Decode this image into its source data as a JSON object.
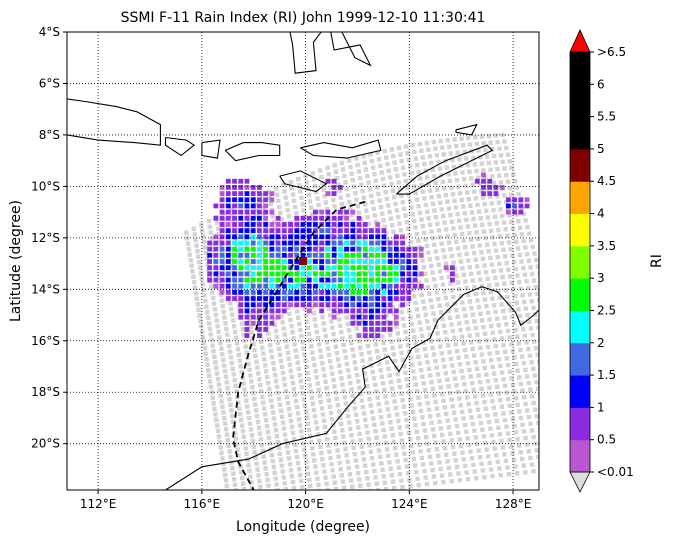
{
  "chart_data": {
    "type": "map",
    "title": "SSMI F-11 Rain Index (RI) John 1999-12-10 11:30:41",
    "xlabel": "Longitude (degree)",
    "ylabel": "Latitude (degree)",
    "xlim": [
      110.8,
      129.0
    ],
    "ylim": [
      -21.8,
      -4.0
    ],
    "xticks": [
      {
        "value": 112,
        "label": "112°E"
      },
      {
        "value": 116,
        "label": "116°E"
      },
      {
        "value": 120,
        "label": "120°E"
      },
      {
        "value": 124,
        "label": "124°E"
      },
      {
        "value": 128,
        "label": "128°E"
      }
    ],
    "yticks": [
      {
        "value": -4,
        "label": "4°S"
      },
      {
        "value": -6,
        "label": "6°S"
      },
      {
        "value": -8,
        "label": "8°S"
      },
      {
        "value": -10,
        "label": "10°S"
      },
      {
        "value": -12,
        "label": "12°S"
      },
      {
        "value": -14,
        "label": "14°S"
      },
      {
        "value": -16,
        "label": "16°S"
      },
      {
        "value": -18,
        "label": "18°S"
      },
      {
        "value": -20,
        "label": "20°S"
      }
    ],
    "grid": "dotted",
    "colorbar": {
      "label": "RI",
      "tick_labels": [
        "<0.01",
        "0.5",
        "1",
        "1.5",
        "2",
        "2.5",
        "3",
        "3.5",
        "4",
        "4.5",
        "5",
        "5.5",
        "6",
        ">6.5"
      ],
      "colors": [
        "#BA55D3",
        "#8A2BE2",
        "#0000FF",
        "#4169E1",
        "#00FFFF",
        "#00FF00",
        "#7FFF00",
        "#FFFF00",
        "#FFA500",
        "#800000",
        "#000000",
        "#000000",
        "#000000"
      ],
      "under_color": "#DDDDDD",
      "over_color": "#FF0000"
    },
    "swath_color": "#D3D3D3",
    "track_style": "dashed",
    "storm_center": {
      "lon": 119.9,
      "lat": -12.9,
      "color": "#8B0000"
    },
    "track": [
      [
        122.3,
        -10.6
      ],
      [
        121.2,
        -10.9
      ],
      [
        120.3,
        -11.8
      ],
      [
        119.6,
        -12.9
      ],
      [
        119.0,
        -13.9
      ],
      [
        118.2,
        -15.2
      ],
      [
        117.8,
        -16.5
      ],
      [
        117.4,
        -18.0
      ],
      [
        117.2,
        -19.8
      ],
      [
        117.4,
        -20.7
      ],
      [
        118.0,
        -21.8
      ]
    ]
  }
}
